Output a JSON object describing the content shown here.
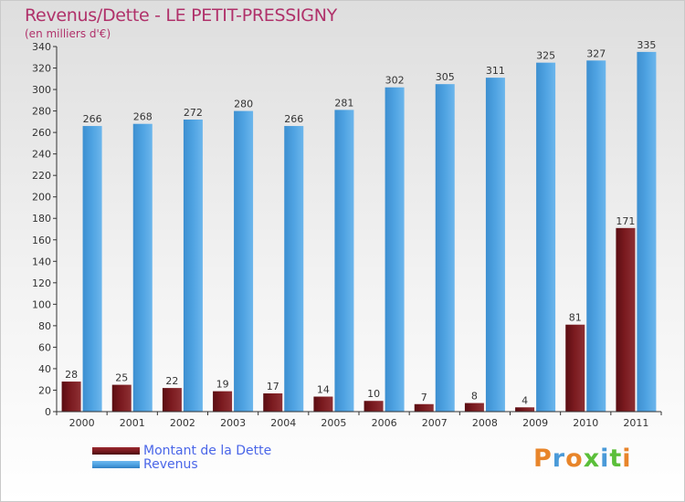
{
  "title": "Revenus/Dette - LE PETIT-PRESSIGNY",
  "subtitle": "(en milliers d'€)",
  "logo": {
    "letters": [
      "P",
      "r",
      "o",
      "x",
      "i",
      "t",
      "i"
    ]
  },
  "colors": {
    "title": "#b0316a",
    "legend_text": "#4a66e8",
    "debt": "#7a1a1f",
    "revenue": "#4fa3e2"
  },
  "chart_data": {
    "type": "bar",
    "categories": [
      "2000",
      "2001",
      "2002",
      "2003",
      "2004",
      "2005",
      "2006",
      "2007",
      "2008",
      "2009",
      "2010",
      "2011"
    ],
    "series": [
      {
        "name": "Montant de la Dette",
        "values": [
          28,
          25,
          22,
          19,
          17,
          14,
          10,
          7,
          8,
          4,
          81,
          171
        ]
      },
      {
        "name": "Revenus",
        "values": [
          266,
          268,
          272,
          280,
          266,
          281,
          302,
          305,
          311,
          325,
          327,
          335
        ]
      }
    ],
    "ylim": [
      0,
      340
    ],
    "yticks": [
      0,
      20,
      40,
      60,
      80,
      100,
      120,
      140,
      160,
      180,
      200,
      220,
      240,
      260,
      280,
      300,
      320,
      340
    ],
    "grid": false,
    "legend": "bottom-left"
  }
}
